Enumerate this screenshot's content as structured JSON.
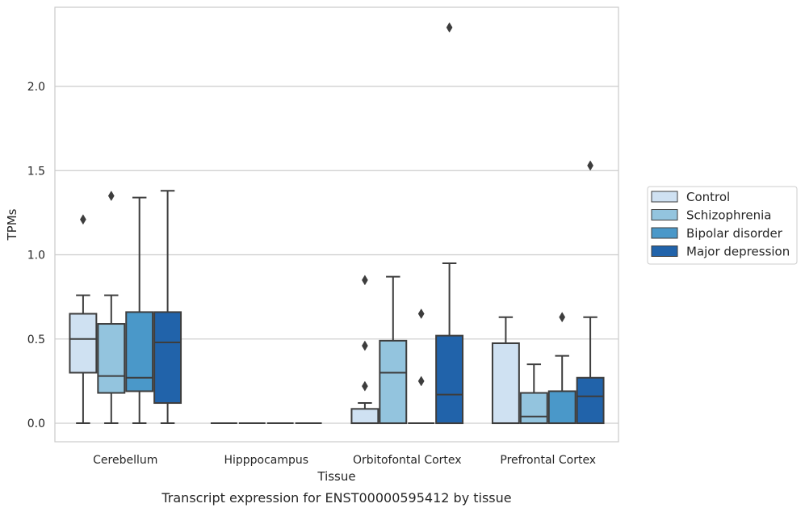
{
  "chart_data": {
    "type": "box",
    "xlabel": "Tissue",
    "ylabel": "TPMs",
    "caption": "Transcript expression for ENST00000595412 by tissue",
    "ylim": [
      -0.11,
      2.47
    ],
    "yticks": [
      "0.0",
      "0.5",
      "1.0",
      "1.5",
      "2.0"
    ],
    "grid": "horizontal",
    "legend_position": "right",
    "categories": [
      "Cerebellum",
      "Hipppocampus",
      "Orbitofontal Cortex",
      "Prefrontal Cortex"
    ],
    "series": [
      {
        "name": "Control",
        "color": "#cfe1f2",
        "boxes": [
          {
            "whislo": 0.0,
            "q1": 0.3,
            "med": 0.5,
            "q3": 0.65,
            "whishi": 0.76,
            "fliers": [
              1.21
            ]
          },
          {
            "whislo": 0.0,
            "q1": 0.0,
            "med": 0.0,
            "q3": 0.0,
            "whishi": 0.0,
            "fliers": []
          },
          {
            "whislo": 0.0,
            "q1": 0.0,
            "med": 0.0,
            "q3": 0.085,
            "whishi": 0.12,
            "fliers": [
              0.22,
              0.46,
              0.85
            ]
          },
          {
            "whislo": 0.0,
            "q1": 0.0,
            "med": 0.0,
            "q3": 0.475,
            "whishi": 0.63,
            "fliers": []
          }
        ]
      },
      {
        "name": "Schizophrenia",
        "color": "#93c4de",
        "boxes": [
          {
            "whislo": 0.0,
            "q1": 0.18,
            "med": 0.28,
            "q3": 0.59,
            "whishi": 0.76,
            "fliers": [
              1.35
            ]
          },
          {
            "whislo": 0.0,
            "q1": 0.0,
            "med": 0.0,
            "q3": 0.0,
            "whishi": 0.0,
            "fliers": []
          },
          {
            "whislo": 0.0,
            "q1": 0.0,
            "med": 0.3,
            "q3": 0.49,
            "whishi": 0.87,
            "fliers": []
          },
          {
            "whislo": 0.0,
            "q1": 0.0,
            "med": 0.04,
            "q3": 0.18,
            "whishi": 0.35,
            "fliers": []
          }
        ]
      },
      {
        "name": "Bipolar disorder",
        "color": "#4a98c9",
        "boxes": [
          {
            "whislo": 0.0,
            "q1": 0.19,
            "med": 0.27,
            "q3": 0.66,
            "whishi": 1.34,
            "fliers": []
          },
          {
            "whislo": 0.0,
            "q1": 0.0,
            "med": 0.0,
            "q3": 0.0,
            "whishi": 0.0,
            "fliers": []
          },
          {
            "whislo": 0.0,
            "q1": 0.0,
            "med": 0.0,
            "q3": 0.0,
            "whishi": 0.0,
            "fliers": [
              0.25,
              0.65
            ]
          },
          {
            "whislo": 0.0,
            "q1": 0.0,
            "med": 0.0,
            "q3": 0.19,
            "whishi": 0.4,
            "fliers": [
              0.63
            ]
          }
        ]
      },
      {
        "name": "Major depression",
        "color": "#2163aa",
        "boxes": [
          {
            "whislo": 0.0,
            "q1": 0.12,
            "med": 0.48,
            "q3": 0.66,
            "whishi": 1.38,
            "fliers": []
          },
          {
            "whislo": 0.0,
            "q1": 0.0,
            "med": 0.0,
            "q3": 0.0,
            "whishi": 0.0,
            "fliers": []
          },
          {
            "whislo": 0.0,
            "q1": 0.0,
            "med": 0.17,
            "q3": 0.52,
            "whishi": 0.95,
            "fliers": [
              2.35
            ]
          },
          {
            "whislo": 0.0,
            "q1": 0.0,
            "med": 0.16,
            "q3": 0.27,
            "whishi": 0.63,
            "fliers": [
              1.53
            ]
          }
        ]
      }
    ]
  }
}
